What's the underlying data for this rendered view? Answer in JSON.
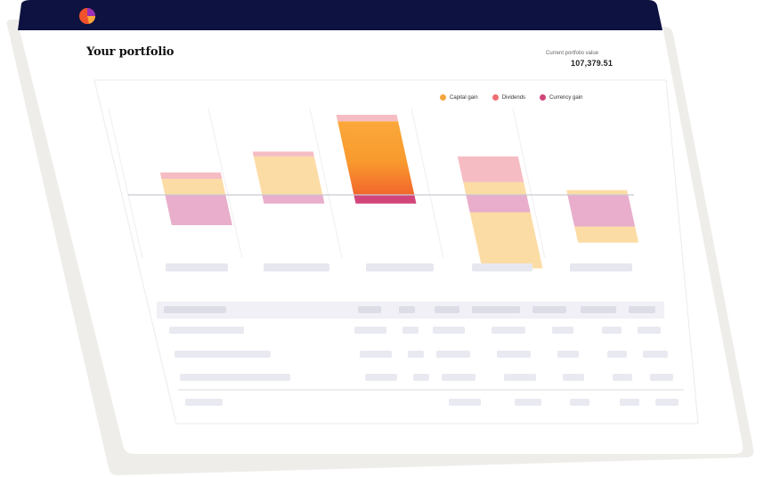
{
  "header": {
    "page_title": "Your portfolio",
    "value_label": "Current portfolio value",
    "value_amount": "107,379.51"
  },
  "legend": [
    {
      "label": "Capital gain",
      "color": "#F5A63C"
    },
    {
      "label": "Dividends",
      "color": "#EE6E73"
    },
    {
      "label": "Currency gain",
      "color": "#D2457B"
    }
  ],
  "colors": {
    "navbar": "#0D1240",
    "capital_light": "#FCDCA5",
    "dividend_light": "#F6BCC3",
    "currency_light": "#E8AECB",
    "placeholder": "#E7E7F0",
    "table_header_bg": "#F0F0F6"
  },
  "chart_data": {
    "type": "bar",
    "categories": [
      "",
      "",
      "",
      "",
      ""
    ],
    "series": [
      {
        "values": [
          1.0,
          2.4,
          4.6,
          0.8,
          0.3
        ]
      },
      {
        "values": [
          0.4,
          0.3,
          0.4,
          1.6,
          0.0
        ]
      },
      {
        "values": [
          -2.1,
          -0.6,
          -0.6,
          -1.2,
          -2.2
        ]
      }
    ],
    "extra_negative": [
      0,
      0,
      0,
      -3.5,
      -1.0
    ],
    "ylim": [
      -4,
      5
    ]
  }
}
